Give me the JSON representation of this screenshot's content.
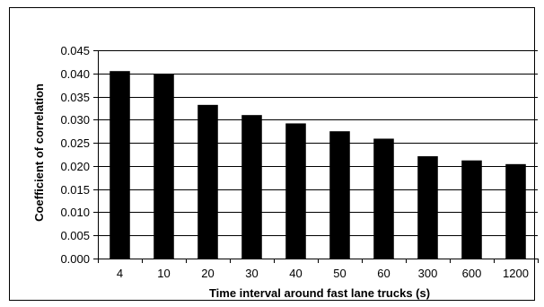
{
  "chart_data": {
    "type": "bar",
    "title": "",
    "xlabel": "Time interval around fast lane trucks (s)",
    "ylabel": "Coefficient of correlation",
    "categories": [
      "4",
      "10",
      "20",
      "30",
      "40",
      "50",
      "60",
      "300",
      "600",
      "1200"
    ],
    "values": [
      0.0405,
      0.0398,
      0.0332,
      0.031,
      0.0292,
      0.0275,
      0.0259,
      0.0221,
      0.0212,
      0.0204
    ],
    "ylim": [
      0,
      0.045
    ],
    "yticks": [
      "0.000",
      "0.005",
      "0.010",
      "0.015",
      "0.020",
      "0.025",
      "0.030",
      "0.035",
      "0.040",
      "0.045"
    ],
    "grid": true,
    "legend": "none",
    "bar_color": "#000000",
    "grid_color": "#000000",
    "background": "#ffffff"
  }
}
